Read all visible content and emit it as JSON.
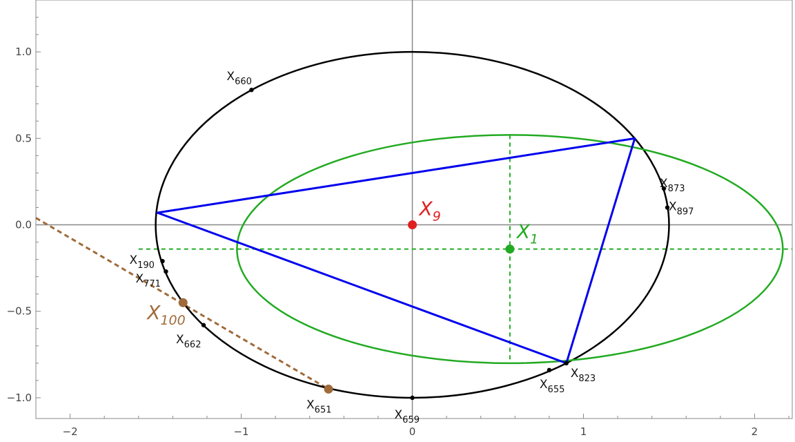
{
  "chart_data": {
    "type": "diagram",
    "xlim": [
      -2.2,
      2.22
    ],
    "ylim": [
      -1.12,
      1.3
    ],
    "x_ticks": [
      -2,
      -1,
      0,
      1,
      2
    ],
    "y_ticks": [
      -1.0,
      -0.5,
      0.0,
      0.5,
      1.0
    ],
    "x_tick_labels": [
      "−2",
      "−1",
      "0",
      "1",
      "2"
    ],
    "y_tick_labels": [
      "−1.0",
      "−0.5",
      "0.0",
      "0.5",
      "1.0"
    ],
    "colors": {
      "circumellipse": "#000000",
      "triangle": "#0000ee",
      "inellipse": "#22aa22",
      "x9": "#e02020",
      "x1": "#22aa22",
      "x100": "#a06a3a",
      "axis": "#888888"
    },
    "circumellipse": {
      "center": [
        0,
        0
      ],
      "rx": 1.5,
      "ry": 1.0
    },
    "inellipse": {
      "center": [
        0.57,
        -0.14
      ],
      "rx": 1.595,
      "ry": 0.66
    },
    "triangle": [
      [
        -1.49,
        0.07
      ],
      [
        1.3,
        0.5
      ],
      [
        0.9,
        -0.8
      ]
    ],
    "dashed_green_vertical": {
      "x": 0.57,
      "y1": 0.52,
      "y2": -0.8
    },
    "dashed_green_horizontal": {
      "y": -0.14,
      "x1": -1.6,
      "x2": 2.22
    },
    "dashed_brown_line": {
      "from": [
        -2.2,
        0.04
      ],
      "to": [
        -0.49,
        -0.95
      ]
    },
    "center_points": [
      {
        "id": "X9",
        "label": "X",
        "sub": "9",
        "x": 0,
        "y": 0,
        "color_key": "x9"
      },
      {
        "id": "X1",
        "label": "X",
        "sub": "1",
        "x": 0.57,
        "y": -0.14,
        "color_key": "x1"
      },
      {
        "id": "X100",
        "label": "X",
        "sub": "100",
        "x": -1.34,
        "y": -0.45,
        "color_key": "x100"
      },
      {
        "id": "X651_dot",
        "label": "",
        "sub": "",
        "x": -0.49,
        "y": -0.95,
        "color_key": "x100"
      }
    ],
    "ellipse_points": [
      {
        "label": "X",
        "sub": "660",
        "x": -0.94,
        "y": 0.78
      },
      {
        "label": "X",
        "sub": "873",
        "x": 1.47,
        "y": 0.21
      },
      {
        "label": "X",
        "sub": "897",
        "x": 1.49,
        "y": 0.1
      },
      {
        "label": "X",
        "sub": "190",
        "x": -1.46,
        "y": -0.21
      },
      {
        "label": "X",
        "sub": "771",
        "x": -1.44,
        "y": -0.27
      },
      {
        "label": "X",
        "sub": "662",
        "x": -1.22,
        "y": -0.58
      },
      {
        "label": "X",
        "sub": "651",
        "x": -0.49,
        "y": -0.95
      },
      {
        "label": "X",
        "sub": "659",
        "x": 0.0,
        "y": -1.0
      },
      {
        "label": "X",
        "sub": "655",
        "x": 0.8,
        "y": -0.84
      },
      {
        "label": "X",
        "sub": "823",
        "x": 0.9,
        "y": -0.8
      }
    ]
  }
}
